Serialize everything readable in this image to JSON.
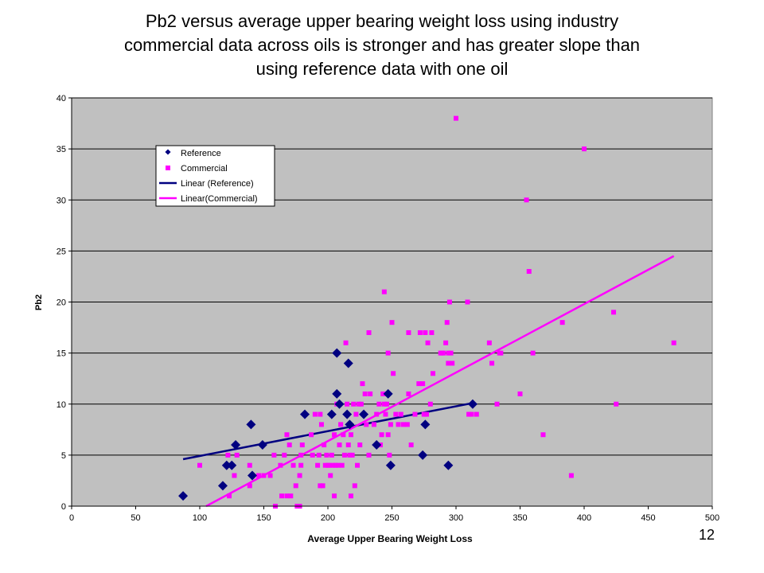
{
  "slide": {
    "title_lines": [
      "Pb2 versus average upper bearing weight loss using industry",
      "commercial data across oils is stronger and has greater slope than",
      "using reference data with one oil"
    ],
    "page_number": "12"
  },
  "chart_data": {
    "type": "scatter",
    "xlabel": "Average Upper Bearing Weight Loss",
    "ylabel": "Pb2",
    "xlim": [
      0,
      500
    ],
    "ylim": [
      0,
      40
    ],
    "x_ticks": [
      "0",
      "50",
      "100",
      "150",
      "200",
      "250",
      "300",
      "350",
      "400",
      "450",
      "500"
    ],
    "y_ticks": [
      "0",
      "5",
      "10",
      "15",
      "20",
      "25",
      "30",
      "35",
      "40"
    ],
    "grid": "horizontal",
    "background": "#c0c0c0",
    "legend_position": "top-left inside plot",
    "series": [
      {
        "name": "Reference",
        "marker": "diamond",
        "color": "#000080",
        "points": [
          [
            87,
            1
          ],
          [
            118,
            2
          ],
          [
            121,
            4
          ],
          [
            125,
            4
          ],
          [
            128,
            6
          ],
          [
            140,
            8
          ],
          [
            141,
            3
          ],
          [
            149,
            6
          ],
          [
            182,
            9
          ],
          [
            203,
            9
          ],
          [
            207,
            15
          ],
          [
            207,
            11
          ],
          [
            209,
            10
          ],
          [
            215,
            9
          ],
          [
            216,
            14
          ],
          [
            217,
            8
          ],
          [
            228,
            9
          ],
          [
            238,
            6
          ],
          [
            247,
            11
          ],
          [
            249,
            4
          ],
          [
            274,
            5
          ],
          [
            276,
            8
          ],
          [
            294,
            4
          ],
          [
            313,
            10
          ]
        ]
      },
      {
        "name": "Commercial",
        "marker": "square",
        "color": "#ff00ff",
        "points": [
          [
            100,
            4
          ],
          [
            122,
            5
          ],
          [
            123,
            1
          ],
          [
            127,
            3
          ],
          [
            129,
            5
          ],
          [
            139,
            4
          ],
          [
            139,
            2
          ],
          [
            146,
            3
          ],
          [
            150,
            3
          ],
          [
            155,
            3
          ],
          [
            158,
            5
          ],
          [
            159,
            0
          ],
          [
            163,
            4
          ],
          [
            164,
            1
          ],
          [
            166,
            5
          ],
          [
            168,
            7
          ],
          [
            168,
            1
          ],
          [
            170,
            6
          ],
          [
            171,
            1
          ],
          [
            173,
            4
          ],
          [
            175,
            2
          ],
          [
            176,
            0
          ],
          [
            178,
            0
          ],
          [
            178,
            3
          ],
          [
            179,
            5
          ],
          [
            179,
            4
          ],
          [
            180,
            6
          ],
          [
            187,
            7
          ],
          [
            188,
            5
          ],
          [
            190,
            9
          ],
          [
            192,
            4
          ],
          [
            193,
            5
          ],
          [
            194,
            9
          ],
          [
            194,
            2
          ],
          [
            195,
            8
          ],
          [
            196,
            2
          ],
          [
            197,
            6
          ],
          [
            198,
            4
          ],
          [
            199,
            5
          ],
          [
            200,
            4
          ],
          [
            201,
            4
          ],
          [
            202,
            3
          ],
          [
            203,
            5
          ],
          [
            204,
            4
          ],
          [
            205,
            1
          ],
          [
            205,
            7
          ],
          [
            206,
            4
          ],
          [
            207,
            10
          ],
          [
            208,
            4
          ],
          [
            209,
            6
          ],
          [
            210,
            8
          ],
          [
            211,
            4
          ],
          [
            212,
            7
          ],
          [
            213,
            5
          ],
          [
            214,
            16
          ],
          [
            215,
            10
          ],
          [
            216,
            6
          ],
          [
            217,
            5
          ],
          [
            218,
            1
          ],
          [
            218,
            7
          ],
          [
            219,
            5
          ],
          [
            220,
            10
          ],
          [
            221,
            2
          ],
          [
            222,
            9
          ],
          [
            223,
            4
          ],
          [
            224,
            10
          ],
          [
            225,
            6
          ],
          [
            226,
            10
          ],
          [
            227,
            12
          ],
          [
            228,
            9
          ],
          [
            229,
            11
          ],
          [
            230,
            8
          ],
          [
            232,
            5
          ],
          [
            232,
            17
          ],
          [
            233,
            11
          ],
          [
            236,
            8
          ],
          [
            238,
            9
          ],
          [
            240,
            10
          ],
          [
            241,
            6
          ],
          [
            242,
            7
          ],
          [
            243,
            11
          ],
          [
            244,
            10
          ],
          [
            244,
            21
          ],
          [
            245,
            9
          ],
          [
            246,
            10
          ],
          [
            247,
            11
          ],
          [
            247,
            7
          ],
          [
            247,
            15
          ],
          [
            248,
            5
          ],
          [
            249,
            8
          ],
          [
            250,
            18
          ],
          [
            251,
            13
          ],
          [
            253,
            9
          ],
          [
            255,
            8
          ],
          [
            257,
            9
          ],
          [
            259,
            8
          ],
          [
            262,
            8
          ],
          [
            263,
            11
          ],
          [
            263,
            17
          ],
          [
            265,
            6
          ],
          [
            268,
            9
          ],
          [
            271,
            12
          ],
          [
            272,
            17
          ],
          [
            274,
            12
          ],
          [
            275,
            9
          ],
          [
            276,
            17
          ],
          [
            277,
            9
          ],
          [
            278,
            16
          ],
          [
            280,
            10
          ],
          [
            281,
            17
          ],
          [
            282,
            13
          ],
          [
            288,
            15
          ],
          [
            289,
            15
          ],
          [
            290,
            15
          ],
          [
            292,
            16
          ],
          [
            293,
            18
          ],
          [
            294,
            15
          ],
          [
            294,
            14
          ],
          [
            295,
            20
          ],
          [
            296,
            15
          ],
          [
            297,
            14
          ],
          [
            300,
            38
          ],
          [
            309,
            20
          ],
          [
            310,
            9
          ],
          [
            312,
            9
          ],
          [
            316,
            9
          ],
          [
            326,
            16
          ],
          [
            328,
            14
          ],
          [
            332,
            10
          ],
          [
            334,
            15
          ],
          [
            335,
            15
          ],
          [
            350,
            11
          ],
          [
            355,
            30
          ],
          [
            357,
            23
          ],
          [
            360,
            15
          ],
          [
            368,
            7
          ],
          [
            383,
            18
          ],
          [
            390,
            3
          ],
          [
            400,
            35
          ],
          [
            423,
            19
          ],
          [
            425,
            10
          ],
          [
            470,
            16
          ]
        ]
      },
      {
        "name": "Linear (Reference)",
        "type": "line",
        "color": "#000080",
        "points": [
          [
            87,
            4.6
          ],
          [
            313,
            10.1
          ]
        ]
      },
      {
        "name": "Linear(Commercial)",
        "type": "line",
        "color": "#ff00ff",
        "points": [
          [
            105,
            0
          ],
          [
            470,
            24.5
          ]
        ]
      }
    ]
  }
}
